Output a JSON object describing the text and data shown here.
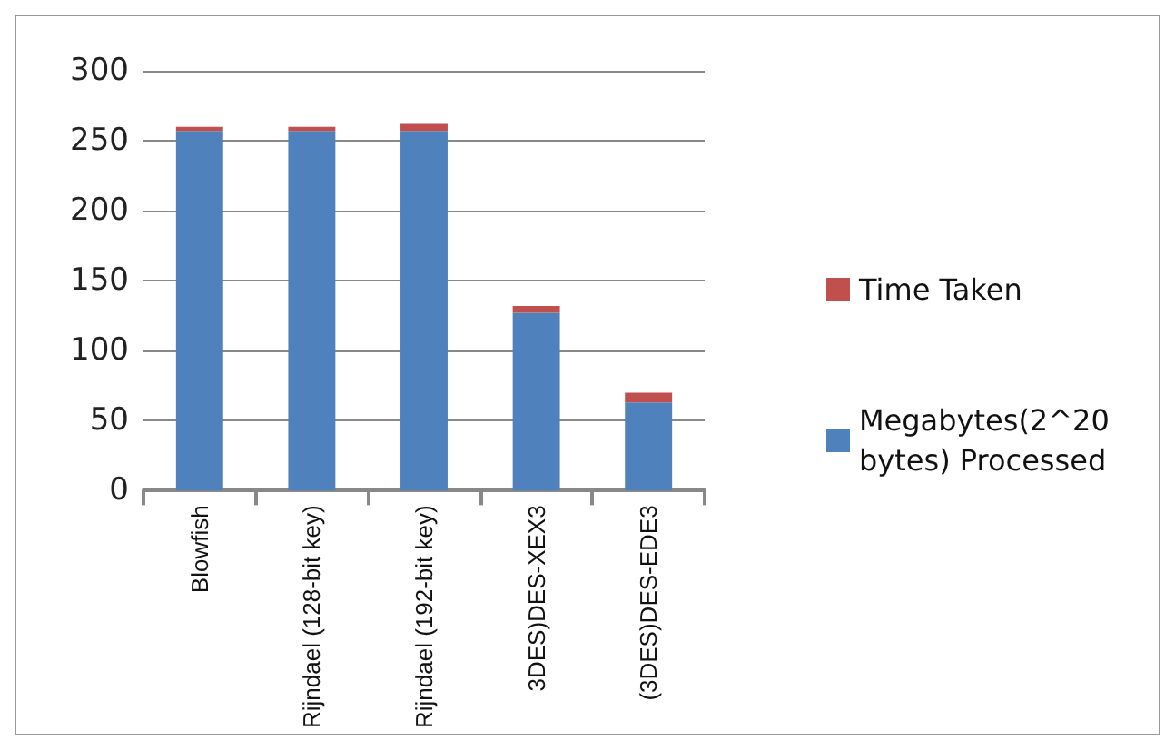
{
  "chart_data": {
    "type": "bar",
    "stacked": true,
    "categories": [
      "Blowfish",
      "Rijndael (128-bit key)",
      "Rijndael (192-bit key)",
      "3DES)DES-XEX3",
      "(3DES)DES-EDE3"
    ],
    "series": [
      {
        "name": "Megabytes(2^20 bytes) Processed",
        "color": "#4f81bd",
        "values": [
          257,
          257,
          257,
          127,
          63
        ]
      },
      {
        "name": "Time Taken",
        "color": "#c0504d",
        "values": [
          3,
          3,
          5,
          5,
          7
        ]
      }
    ],
    "ylim": [
      0,
      300
    ],
    "yticks": [
      0,
      50,
      100,
      150,
      200,
      250,
      300
    ],
    "grid": "y",
    "legend": "right"
  }
}
